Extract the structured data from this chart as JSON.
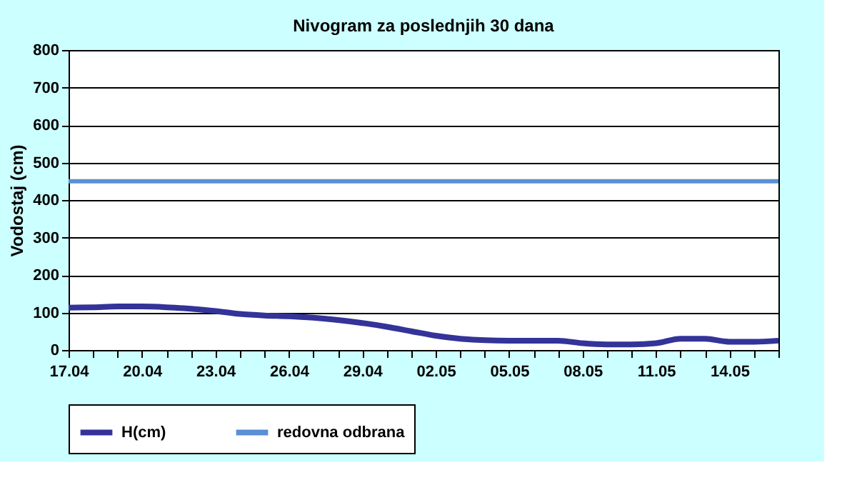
{
  "chart_data": {
    "type": "line",
    "title": "Nivogram za poslednjih 30 dana",
    "ylabel": "Vodostaj (cm)",
    "categories": [
      "17.04",
      null,
      null,
      "20.04",
      null,
      null,
      "23.04",
      null,
      null,
      "26.04",
      null,
      null,
      "29.04",
      null,
      null,
      "02.05",
      null,
      null,
      "05.05",
      null,
      null,
      "08.05",
      null,
      null,
      "11.05",
      null,
      null,
      "14.05",
      null,
      null
    ],
    "series": [
      {
        "name": "H(cm)",
        "color": "#333399",
        "values": [
          113,
          114,
          116,
          116,
          114,
          110,
          104,
          96,
          92,
          90,
          86,
          80,
          72,
          62,
          50,
          38,
          30,
          26,
          25,
          25,
          25,
          18,
          15,
          15,
          18,
          30,
          30,
          22,
          22,
          25
        ]
      }
    ],
    "ref_lines": [
      {
        "axis": "y",
        "value": 450,
        "label": "redovna odbrana",
        "color": "#5b8fd6"
      }
    ],
    "ylim": [
      0,
      800
    ],
    "yticks": [
      0,
      100,
      200,
      300,
      400,
      500,
      600,
      700,
      800
    ],
    "grid": "y",
    "legend": "bottom",
    "line_style": "solid",
    "marker": "none"
  }
}
